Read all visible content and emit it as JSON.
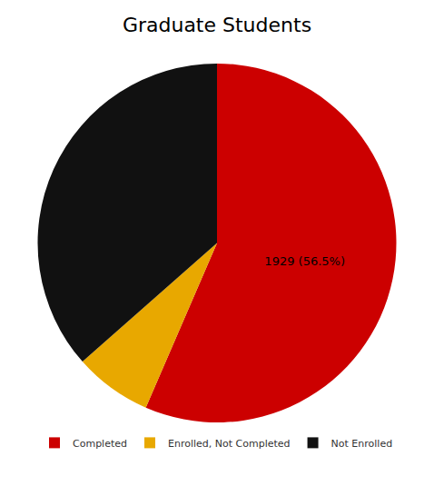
{
  "chart_data": {
    "type": "pie",
    "title": "Graduate Students",
    "categories": [
      "Completed",
      "Enrolled, Not Completed",
      "Not Enrolled"
    ],
    "values": [
      56.5,
      7.0,
      36.5
    ],
    "value_labels": [
      "1929 (56.5%)",
      null,
      null
    ],
    "colors": [
      "#CC0000",
      "#E8A800",
      "#111111"
    ],
    "data_labels": true,
    "legend": "bottom"
  }
}
